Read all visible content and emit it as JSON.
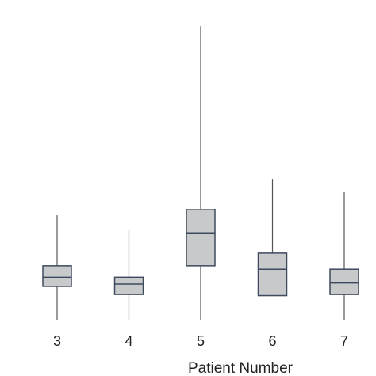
{
  "chart_data": {
    "type": "box",
    "xlabel": "Patient Number",
    "ylabel": "",
    "categories": [
      "3",
      "4",
      "5",
      "6",
      "7"
    ],
    "box_color": "#c8c9cb",
    "line_color": "#3d4a5e",
    "whisker_color": "#555555",
    "boxes": [
      {
        "category": "3",
        "whisker_low": 0.0,
        "q1": 1.45,
        "median": 1.85,
        "q3": 2.35,
        "whisker_high": 4.55
      },
      {
        "category": "4",
        "whisker_low": 0.0,
        "q1": 1.1,
        "median": 1.55,
        "q3": 1.85,
        "whisker_high": 3.9
      },
      {
        "category": "5",
        "whisker_low": 0.0,
        "q1": 2.35,
        "median": 3.75,
        "q3": 4.8,
        "whisker_high": 12.75
      },
      {
        "category": "6",
        "whisker_low": 1.05,
        "q1": 1.05,
        "median": 2.2,
        "q3": 2.9,
        "whisker_high": 6.1
      },
      {
        "category": "7",
        "whisker_low": 0.0,
        "q1": 1.1,
        "median": 1.6,
        "q3": 2.2,
        "whisker_high": 5.55
      }
    ]
  }
}
